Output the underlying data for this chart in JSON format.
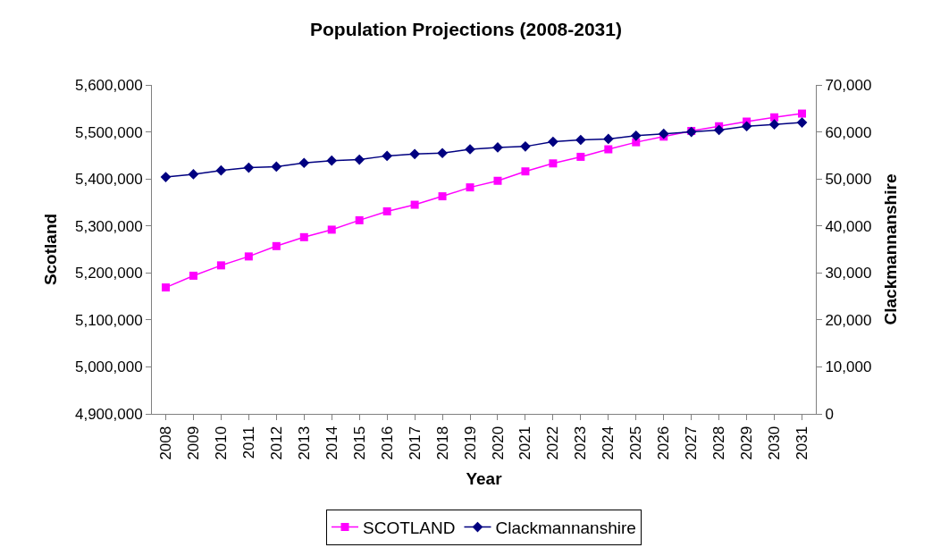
{
  "chart_data": {
    "type": "line",
    "title": "Population Projections (2008-2031)",
    "xlabel": "Year",
    "ylabel": "Scotland",
    "y2label": "Clackmannanshire",
    "categories": [
      "2008",
      "2009",
      "2010",
      "2011",
      "2012",
      "2013",
      "2014",
      "2015",
      "2016",
      "2017",
      "2018",
      "2019",
      "2020",
      "2021",
      "2022",
      "2023",
      "2024",
      "2025",
      "2026",
      "2027",
      "2028",
      "2029",
      "2030",
      "2031"
    ],
    "series": [
      {
        "name": "SCOTLAND",
        "color": "#ff00ff",
        "marker": "square",
        "values": [
          5169000,
          5194000,
          5216000,
          5235000,
          5257000,
          5276000,
          5292000,
          5312000,
          5331000,
          5345000,
          5363000,
          5382000,
          5396000,
          5416000,
          5433000,
          5447000,
          5463000,
          5478000,
          5490000,
          5502000,
          5512000,
          5522000,
          5531000,
          5539000
        ]
      },
      {
        "name": "Clackmannanshire",
        "color": "#000080",
        "marker": "diamond",
        "axis": "y2",
        "values": [
          50400,
          51000,
          51800,
          52400,
          52600,
          53400,
          53900,
          54100,
          54900,
          55300,
          55500,
          56300,
          56700,
          56900,
          57900,
          58300,
          58500,
          59200,
          59600,
          60000,
          60400,
          61200,
          61600,
          62000
        ]
      }
    ],
    "ylim": [
      4900000,
      5600000
    ],
    "yticks": [
      {
        "value": 4900000,
        "label": "4,900,000"
      },
      {
        "value": 5000000,
        "label": "5,000,000"
      },
      {
        "value": 5100000,
        "label": "5,100,000"
      },
      {
        "value": 5200000,
        "label": "5,200,000"
      },
      {
        "value": 5300000,
        "label": "5,300,000"
      },
      {
        "value": 5400000,
        "label": "5,400,000"
      },
      {
        "value": 5500000,
        "label": "5,500,000"
      },
      {
        "value": 5600000,
        "label": "5,600,000"
      }
    ],
    "y2lim": [
      0,
      70000
    ],
    "y2ticks": [
      0,
      {
        "value": 10000,
        "label": "10,000"
      },
      {
        "value": 20000,
        "label": "20,000"
      },
      {
        "value": 30000,
        "label": "30,000"
      },
      {
        "value": 40000,
        "label": "40,000"
      },
      {
        "value": 50000,
        "label": "50,000"
      },
      {
        "value": 60000,
        "label": "60,000"
      },
      {
        "value": 70000,
        "label": "70,000"
      }
    ],
    "legend": "bottom"
  }
}
